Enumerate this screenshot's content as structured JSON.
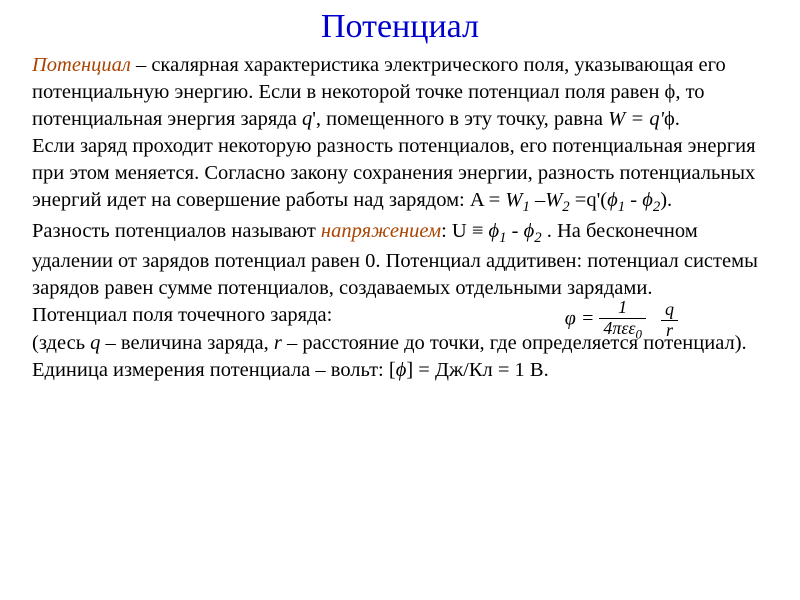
{
  "title": "Потенциал",
  "colors": {
    "title": "#0000cc",
    "term": "#aa4400",
    "text": "#000000",
    "background": "#ffffff"
  },
  "fonts": {
    "title_size": 34,
    "body_size": 20.5,
    "family": "Times New Roman"
  },
  "terms": {
    "potential": "Потенциал",
    "voltage": "напряжением"
  },
  "text": {
    "p1a": " – скалярная характеристика электрического поля, указывающая его потенциальную энергию. Если в некоторой точке потенциал поля равен ",
    "phi": "ϕ",
    "p1b": ", то потенциальная энергия заряда ",
    "q": "q",
    "p1c": "', помещенного в эту точку, равна ",
    "eq1": "W = q'",
    "p1d": ".",
    "p2a": "Если заряд проходит некоторую разность потенциалов, его потенциальная энергия при этом меняется. Согласно закону сохранения энергии, разность потенциальных энергий идет на совершение работы над зарядом: A = ",
    "W1": "W",
    "sub1": "1",
    "minus": " –",
    "W2": "W",
    "sub2": "2",
    "eqq": " =q'(",
    "phi1": "ϕ",
    "dash": " - ",
    "phi2": "ϕ",
    "p2b": ").",
    "p3a": "Разность потенциалов называют ",
    "p3b": ": U ≡ ",
    "p3c": " . На бесконечном удалении от зарядов потенциал равен 0. Потенциал аддитивен: потенциал системы зарядов равен сумме потенциалов, создаваемых отдельными зарядами.",
    "p4": "Потенциал поля точечного заряда:",
    "p5a": "(здесь ",
    "p5b": " – величина заряда, ",
    "r": "r",
    "p5c": " – расстояние до точки, где определяется потенциал).",
    "p6a": "Единица измерения потенциала – вольт: [",
    "p6b": "] = Дж/Кл = 1 В."
  },
  "formula": {
    "lhs": "φ = ",
    "num1": "1",
    "den1": "4πεε",
    "den1sub": "0",
    "num2": "q",
    "den2": "r"
  }
}
